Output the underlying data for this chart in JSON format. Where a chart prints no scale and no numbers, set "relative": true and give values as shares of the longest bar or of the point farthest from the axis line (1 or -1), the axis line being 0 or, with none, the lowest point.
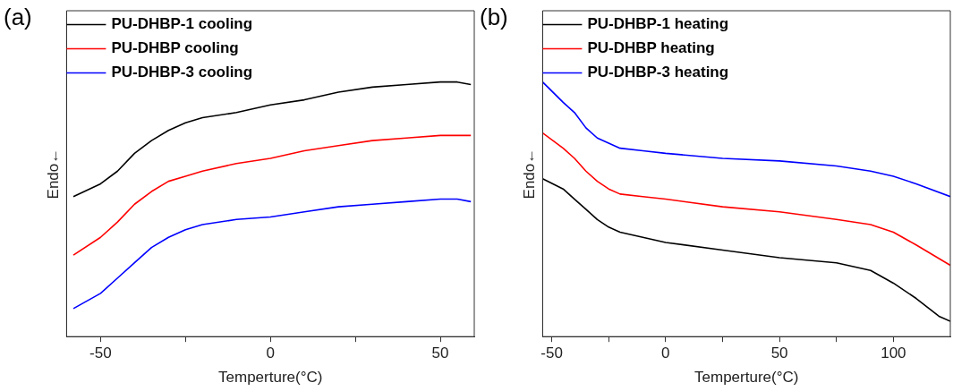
{
  "chart_data": [
    {
      "type": "line",
      "title": "(a)",
      "xlabel": "Temperture(°C)",
      "ylabel": "Endo←",
      "relative": true,
      "legend": "top left",
      "xlim": [
        -60,
        60
      ],
      "xticks": [
        -50,
        {
          "value": -25,
          "label": null
        },
        0,
        {
          "value": 25,
          "label": null
        },
        50
      ],
      "x": [
        -58,
        -50,
        -45,
        -40,
        -35,
        -30,
        -25,
        -20,
        -10,
        0,
        10,
        20,
        30,
        40,
        50,
        55,
        59
      ],
      "series": [
        {
          "name": "PU-DHBP-1 cooling",
          "color": "#000000",
          "values": [
            0.55,
            0.6,
            0.65,
            0.72,
            0.77,
            0.81,
            0.84,
            0.86,
            0.88,
            0.91,
            0.93,
            0.96,
            0.98,
            0.99,
            1.0,
            1.0,
            0.99
          ]
        },
        {
          "name": "PU-DHBP cooling",
          "color": "#ff0000",
          "values": [
            0.32,
            0.39,
            0.45,
            0.52,
            0.57,
            0.61,
            0.63,
            0.65,
            0.68,
            0.7,
            0.73,
            0.75,
            0.77,
            0.78,
            0.79,
            0.79,
            0.79
          ]
        },
        {
          "name": "PU-DHBP-3 cooling",
          "color": "#0000ff",
          "values": [
            0.11,
            0.17,
            0.23,
            0.29,
            0.35,
            0.39,
            0.42,
            0.44,
            0.46,
            0.47,
            0.49,
            0.51,
            0.52,
            0.53,
            0.54,
            0.54,
            0.53
          ]
        }
      ]
    },
    {
      "type": "line",
      "title": "(b)",
      "xlabel": "Temperture(°C)",
      "ylabel": "Endo←",
      "relative": true,
      "legend": "top left",
      "xlim": [
        -54,
        125
      ],
      "xticks": [
        -50,
        {
          "value": -25,
          "label": null
        },
        0,
        {
          "value": 25,
          "label": null
        },
        50,
        {
          "value": 75,
          "label": null
        },
        100
      ],
      "series": [
        {
          "name": "PU-DHBP-1 heating",
          "color": "#000000",
          "x": [
            -54,
            -45,
            -40,
            -35,
            -30,
            -25,
            -20,
            -10,
            0,
            25,
            50,
            75,
            90,
            100,
            110,
            120,
            125
          ],
          "values": [
            0.62,
            0.58,
            0.54,
            0.5,
            0.46,
            0.43,
            0.41,
            0.39,
            0.37,
            0.34,
            0.31,
            0.29,
            0.26,
            0.21,
            0.15,
            0.08,
            0.06
          ]
        },
        {
          "name": "PU-DHBP heating",
          "color": "#ff0000",
          "x": [
            -54,
            -45,
            -40,
            -35,
            -30,
            -25,
            -20,
            -10,
            0,
            25,
            50,
            75,
            90,
            100,
            110,
            125
          ],
          "values": [
            0.8,
            0.74,
            0.7,
            0.65,
            0.61,
            0.58,
            0.56,
            0.55,
            0.54,
            0.51,
            0.49,
            0.46,
            0.44,
            0.41,
            0.36,
            0.28
          ]
        },
        {
          "name": "PU-DHBP-3 heating",
          "color": "#0000ff",
          "x": [
            -54,
            -45,
            -40,
            -35,
            -30,
            -25,
            -20,
            -10,
            0,
            25,
            50,
            75,
            90,
            100,
            110,
            125
          ],
          "values": [
            1.0,
            0.92,
            0.88,
            0.82,
            0.78,
            0.76,
            0.74,
            0.73,
            0.72,
            0.7,
            0.69,
            0.67,
            0.65,
            0.63,
            0.6,
            0.55
          ]
        }
      ]
    }
  ]
}
